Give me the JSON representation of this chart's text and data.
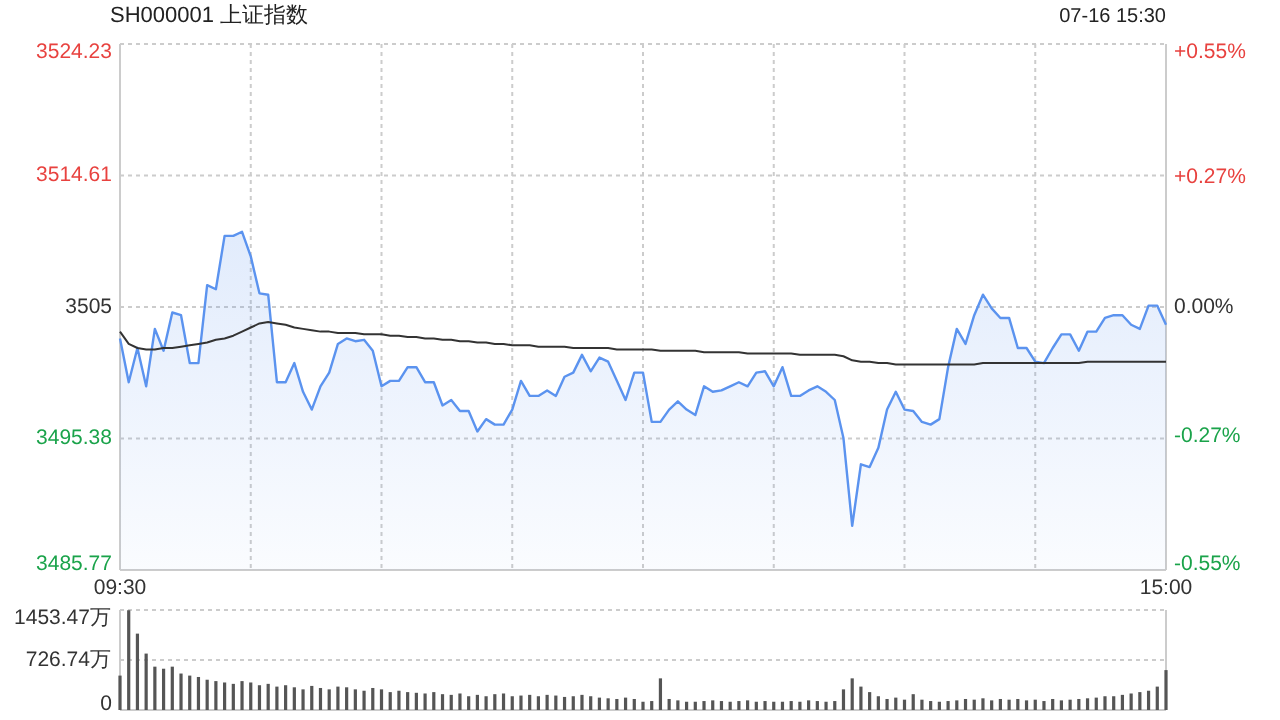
{
  "chart_data": [
    {
      "type": "line",
      "title": "SH000001 上证指数",
      "subtitle": "07-16 15:30",
      "categories": [
        "09:30",
        null,
        null,
        null,
        null,
        null,
        null,
        null,
        null,
        null,
        null,
        null,
        null,
        null,
        null,
        null,
        null,
        null,
        null,
        null,
        null,
        null,
        null,
        null,
        null,
        null,
        null,
        null,
        null,
        null,
        null,
        null,
        null,
        null,
        null,
        null,
        null,
        null,
        null,
        null,
        null,
        null,
        null,
        null,
        null,
        null,
        null,
        null,
        null,
        null,
        null,
        null,
        null,
        null,
        null,
        null,
        null,
        null,
        null,
        null,
        null,
        null,
        null,
        null,
        null,
        null,
        null,
        null,
        null,
        null,
        null,
        null,
        null,
        null,
        null,
        null,
        null,
        null,
        null,
        null,
        null,
        null,
        null,
        null,
        null,
        null,
        null,
        null,
        null,
        null,
        null,
        null,
        null,
        null,
        null,
        null,
        null,
        null,
        null,
        null,
        null,
        null,
        null,
        null,
        null,
        null,
        null,
        null,
        null,
        null,
        null,
        null,
        null,
        null,
        null,
        null,
        null,
        null,
        null,
        null,
        "15:00"
      ],
      "ylim": [
        3485.77,
        3524.23
      ],
      "yticks": [
        3485.77,
        3495.38,
        3505.0,
        3514.61,
        3524.23
      ],
      "y2lim": [
        -0.55,
        0.55
      ],
      "y2ticks": [
        {
          "value": -0.55,
          "label": "-0.55%"
        },
        {
          "value": -0.27,
          "label": "-0.27%"
        },
        {
          "value": 0,
          "label": "0.00%"
        },
        {
          "value": 0.27,
          "label": "+0.27%"
        },
        {
          "value": 0.55,
          "label": "+0.55%"
        }
      ],
      "grid": true,
      "series": [
        {
          "type": "area",
          "color": "#5b93ef",
          "values": [
            3502.7,
            3499.5,
            3502.0,
            3499.2,
            3503.4,
            3501.8,
            3504.6,
            3504.4,
            3500.9,
            3500.9,
            3506.6,
            3506.3,
            3510.2,
            3510.2,
            3510.5,
            3508.7,
            3506.0,
            3505.9,
            3499.5,
            3499.5,
            3500.9,
            3498.8,
            3497.5,
            3499.2,
            3500.2,
            3502.3,
            3502.7,
            3502.5,
            3502.6,
            3501.8,
            3499.2,
            3499.6,
            3499.6,
            3500.6,
            3500.6,
            3499.5,
            3499.5,
            3497.8,
            3498.2,
            3497.4,
            3497.4,
            3495.9,
            3496.8,
            3496.4,
            3496.4,
            3497.5,
            3499.6,
            3498.5,
            3498.5,
            3498.9,
            3498.5,
            3499.9,
            3500.2,
            3501.5,
            3500.3,
            3501.3,
            3501.0,
            3499.6,
            3498.2,
            3500.2,
            3500.2,
            3496.6,
            3496.6,
            3497.5,
            3498.1,
            3497.5,
            3497.1,
            3499.2,
            3498.8,
            3498.9,
            3499.2,
            3499.5,
            3499.2,
            3500.2,
            3500.3,
            3499.2,
            3500.6,
            3498.5,
            3498.5,
            3498.9,
            3499.2,
            3498.8,
            3498.2,
            3495.4,
            3489.0,
            3493.5,
            3493.3,
            3494.7,
            3497.5,
            3498.8,
            3497.5,
            3497.4,
            3496.6,
            3496.4,
            3496.8,
            3500.6,
            3503.4,
            3502.3,
            3504.4,
            3505.9,
            3504.9,
            3504.2,
            3504.2,
            3502.0,
            3502.0,
            3501.0,
            3500.9,
            3502.0,
            3503.0,
            3503.0,
            3501.8,
            3503.2,
            3503.2,
            3504.2,
            3504.4,
            3504.4,
            3503.7,
            3503.4,
            3505.1,
            3505.1,
            3503.7
          ]
        },
        {
          "type": "line",
          "color": "#333333",
          "values": [
            3503.2,
            3502.3,
            3502.0,
            3501.9,
            3501.9,
            3502.0,
            3502.0,
            3502.1,
            3502.2,
            3502.3,
            3502.4,
            3502.6,
            3502.7,
            3502.9,
            3503.2,
            3503.5,
            3503.8,
            3503.9,
            3503.8,
            3503.7,
            3503.5,
            3503.4,
            3503.3,
            3503.2,
            3503.2,
            3503.1,
            3503.1,
            3503.1,
            3503.0,
            3503.0,
            3503.0,
            3502.9,
            3502.9,
            3502.8,
            3502.8,
            3502.7,
            3502.7,
            3502.6,
            3502.6,
            3502.5,
            3502.5,
            3502.4,
            3502.4,
            3502.3,
            3502.3,
            3502.2,
            3502.2,
            3502.2,
            3502.1,
            3502.1,
            3502.1,
            3502.1,
            3502.0,
            3502.0,
            3502.0,
            3502.0,
            3502.0,
            3501.9,
            3501.9,
            3501.9,
            3501.9,
            3501.9,
            3501.8,
            3501.8,
            3501.8,
            3501.8,
            3501.8,
            3501.7,
            3501.7,
            3501.7,
            3501.7,
            3501.7,
            3501.6,
            3501.6,
            3501.6,
            3501.6,
            3501.6,
            3501.6,
            3501.5,
            3501.5,
            3501.5,
            3501.5,
            3501.5,
            3501.4,
            3501.1,
            3501.0,
            3501.0,
            3500.9,
            3500.9,
            3500.8,
            3500.8,
            3500.8,
            3500.8,
            3500.8,
            3500.8,
            3500.8,
            3500.8,
            3500.8,
            3500.8,
            3500.9,
            3500.9,
            3500.9,
            3500.9,
            3500.9,
            3500.9,
            3500.9,
            3500.9,
            3500.9,
            3500.9,
            3500.9,
            3500.9,
            3501.0,
            3501.0,
            3501.0,
            3501.0,
            3501.0,
            3501.0,
            3501.0,
            3501.0,
            3501.0,
            3501.0
          ]
        }
      ]
    },
    {
      "type": "bar",
      "categories": [
        null,
        null,
        null,
        null,
        null,
        null,
        null,
        null,
        null,
        null,
        null,
        null,
        null,
        null,
        null,
        null,
        null,
        null,
        null,
        null,
        null,
        null,
        null,
        null,
        null,
        null,
        null,
        null,
        null,
        null,
        null,
        null,
        null,
        null,
        null,
        null,
        null,
        null,
        null,
        null,
        null,
        null,
        null,
        null,
        null,
        null,
        null,
        null,
        null,
        null,
        null,
        null,
        null,
        null,
        null,
        null,
        null,
        null,
        null,
        null,
        null,
        null,
        null,
        null,
        null,
        null,
        null,
        null,
        null,
        null,
        null,
        null,
        null,
        null,
        null,
        null,
        null,
        null,
        null,
        null,
        null,
        null,
        null,
        null,
        null,
        null,
        null,
        null,
        null,
        null,
        null,
        null,
        null,
        null,
        null,
        null,
        null,
        null,
        null,
        null,
        null,
        null,
        null,
        null,
        null,
        null,
        null,
        null,
        null,
        null,
        null,
        null,
        null,
        null,
        null,
        null,
        null,
        null,
        null,
        null,
        null
      ],
      "ylim": [
        0,
        1453.47
      ],
      "yticks": [
        0,
        {
          "value": 726.74,
          "label": "726.74万"
        },
        {
          "value": 1453.47,
          "label": "1453.47万"
        }
      ],
      "grid": "y",
      "tick_labels": "y",
      "series": [
        {
          "color": "#555555",
          "values": [
            500,
            1450,
            1110,
            820,
            630,
            600,
            630,
            530,
            500,
            480,
            440,
            420,
            400,
            380,
            420,
            400,
            360,
            380,
            340,
            360,
            330,
            300,
            350,
            320,
            300,
            340,
            330,
            300,
            280,
            320,
            300,
            260,
            280,
            260,
            250,
            240,
            260,
            230,
            220,
            240,
            200,
            220,
            200,
            230,
            240,
            200,
            210,
            220,
            200,
            220,
            210,
            190,
            200,
            220,
            200,
            180,
            170,
            160,
            180,
            160,
            120,
            130,
            460,
            160,
            140,
            120,
            120,
            130,
            140,
            130,
            120,
            130,
            140,
            120,
            130,
            120,
            120,
            130,
            120,
            140,
            130,
            120,
            130,
            300,
            460,
            340,
            260,
            200,
            160,
            180,
            150,
            230,
            150,
            130,
            120,
            130,
            140,
            160,
            150,
            170,
            140,
            160,
            150,
            160,
            140,
            150,
            130,
            160,
            140,
            150,
            160,
            170,
            180,
            200,
            200,
            220,
            240,
            260,
            280,
            340,
            580
          ]
        }
      ]
    }
  ]
}
